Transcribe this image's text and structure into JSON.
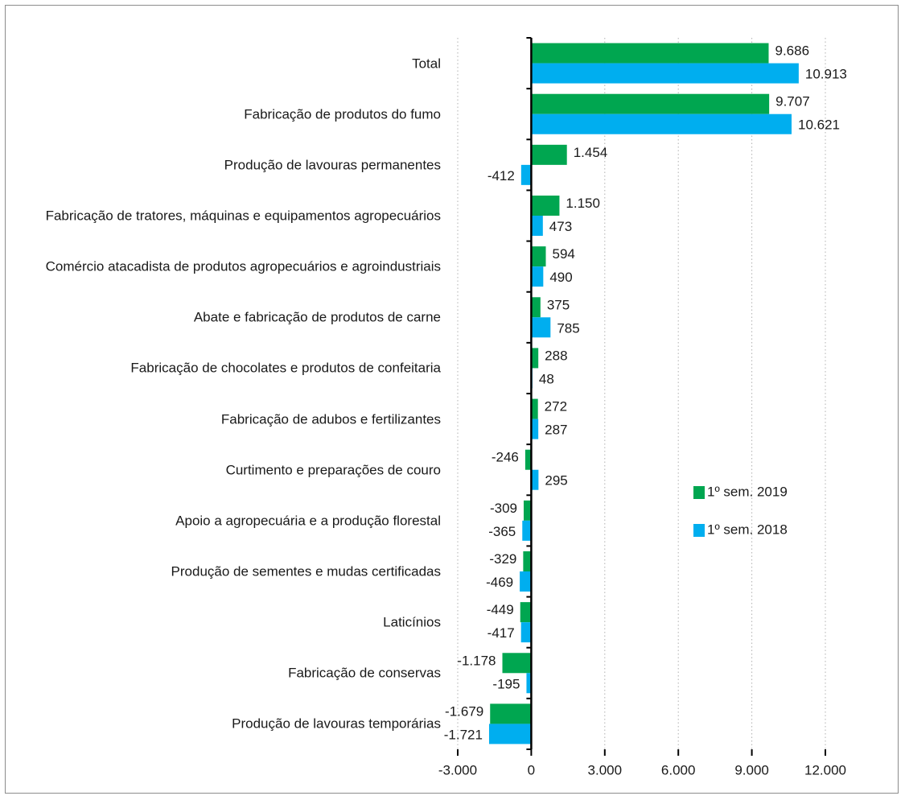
{
  "chart_data": {
    "type": "bar",
    "orientation": "horizontal",
    "categories": [
      "Total",
      "Fabricação de produtos do fumo",
      "Produção de lavouras permanentes",
      "Fabricação de tratores, máquinas e equipamentos agropecuários",
      "Comércio atacadista de produtos agropecuários e agroindustriais",
      "Abate e fabricação de produtos de carne",
      "Fabricação de chocolates e produtos de confeitaria",
      "Fabricação de adubos e fertilizantes",
      "Curtimento e preparações de couro",
      "Apoio a agropecuária e a produção florestal",
      "Produção de sementes e mudas certificadas",
      "Laticínios",
      "Fabricação de conservas",
      "Produção de lavouras temporárias"
    ],
    "series": [
      {
        "name": "1º sem. 2019",
        "color": "#00a650",
        "values": [
          9686,
          9707,
          1454,
          1150,
          594,
          375,
          288,
          272,
          -246,
          -309,
          -329,
          -449,
          -1178,
          -1679
        ],
        "value_labels": [
          "9.686",
          "9.707",
          "1.454",
          "1.150",
          "594",
          "375",
          "288",
          "272",
          "-246",
          "-309",
          "-329",
          "-449",
          "-1.178",
          "-1.679"
        ]
      },
      {
        "name": "1º sem. 2018",
        "color": "#00aeef",
        "values": [
          10913,
          10621,
          -412,
          473,
          490,
          785,
          48,
          287,
          295,
          -365,
          -469,
          -417,
          -195,
          -1721
        ],
        "value_labels": [
          "10.913",
          "10.621",
          "-412",
          "473",
          "490",
          "785",
          "48",
          "287",
          "295",
          "-365",
          "-469",
          "-417",
          "-195",
          "-1.721"
        ]
      }
    ],
    "xlim": [
      -3000,
      12000
    ],
    "xticks": [
      {
        "value": -3000,
        "label": "-3.000"
      },
      0,
      {
        "value": 3000,
        "label": "3.000"
      },
      {
        "value": 6000,
        "label": "6.000"
      },
      {
        "value": 9000,
        "label": "9.000"
      },
      {
        "value": 12000,
        "label": "12.000"
      }
    ],
    "grid": true,
    "legend": "right"
  }
}
